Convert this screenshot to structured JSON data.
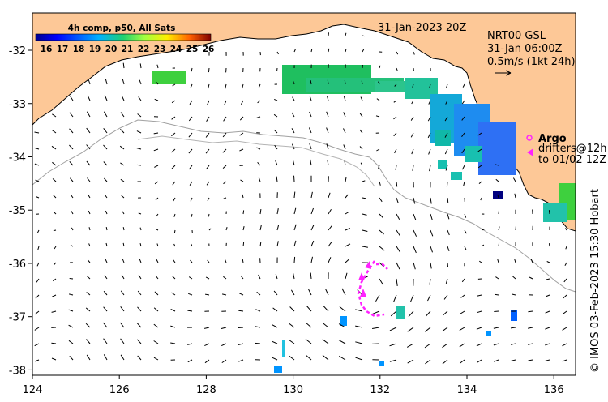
{
  "map": {
    "date_label": "31-Jan-2023 20Z",
    "gsl_title": "NRT00 GSL",
    "gsl_date": "31-Jan 06:00Z",
    "speed_scale": "0.5m/s (1kt 24h)",
    "argo_label": "Argo",
    "drifters_label": "drifters@12h",
    "drifters_to": "to 01/02 12Z",
    "credit": "© IMOS 03-Feb-2023 15:30 Hobart",
    "lon_ticks": [
      "124",
      "126",
      "128",
      "130",
      "132",
      "134",
      "136"
    ],
    "lat_ticks": [
      "-32",
      "-33",
      "-34",
      "-35",
      "-36",
      "-37",
      "-38"
    ],
    "lon_range": [
      124,
      136.5
    ],
    "lat_range": [
      -38.1,
      -31.3
    ],
    "colors": {
      "land": "#fdc897",
      "sea": "#ffffff",
      "drifter": "#ff22ff"
    }
  },
  "colorbar": {
    "title": "4h comp, p50, All Sats",
    "ticks": [
      "16",
      "17",
      "18",
      "19",
      "20",
      "21",
      "22",
      "23",
      "24",
      "25",
      "26"
    ],
    "range": [
      16,
      26
    ]
  }
}
